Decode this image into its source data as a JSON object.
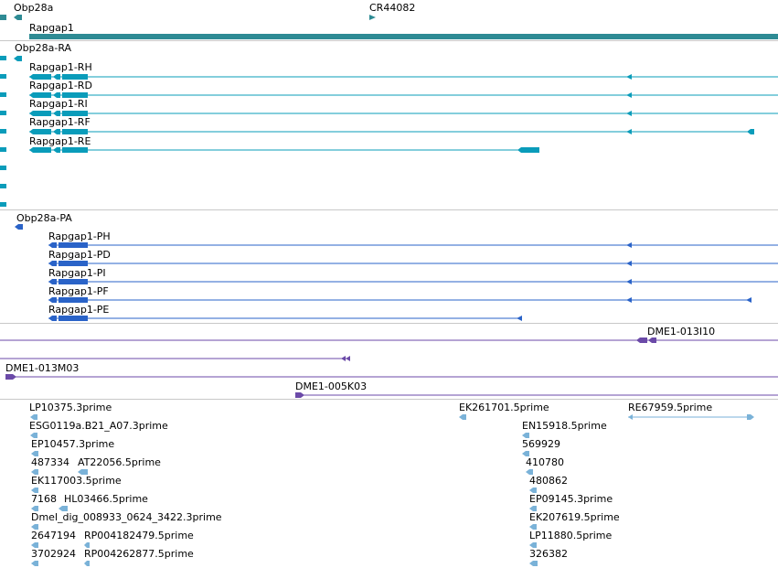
{
  "colors": {
    "gene": "#2e8b94",
    "cdna_teal": "#0a9cba",
    "cdna_blue": "#2a63c8",
    "clone": "#6b4aa8",
    "est": "#7ab2d8",
    "separator": "#c8c8c8",
    "label": "#000000"
  },
  "tracks": {
    "genes": {
      "obp28a": "Obp28a",
      "cr44082": "CR44082",
      "rapgap1": "Rapgap1"
    },
    "transcripts_a": {
      "obp28a_ra": "Obp28a-RA",
      "rh": "Rapgap1-RH",
      "rd": "Rapgap1-RD",
      "ri": "Rapgap1-RI",
      "rf": "Rapgap1-RF",
      "re": "Rapgap1-RE"
    },
    "transcripts_b": {
      "obp28a_pa": "Obp28a-PA",
      "ph": "Rapgap1-PH",
      "pd": "Rapgap1-PD",
      "pi": "Rapgap1-PI",
      "pf": "Rapgap1-PF",
      "pe": "Rapgap1-PE"
    },
    "clones": {
      "dme1_013i10": "DME1-013I10",
      "dme1_013m03": "DME1-013M03",
      "dme1_005k03": "DME1-005K03"
    },
    "ests": {
      "lp10375": "LP10375.3prime",
      "esg0119a": "ESG0119a.B21_A07.3prime",
      "ep10457": "EP10457.3prime",
      "n487334": "487334",
      "at22056": "AT22056.5prime",
      "ek117003": "EK117003.5prime",
      "n7168": "7168",
      "hl03466": "HL03466.5prime",
      "dmel_dig": "Dmel_dig_008933_0624_3422.3prime",
      "n2647194": "2647194",
      "rp004182479": "RP004182479.5prime",
      "n3702924": "3702924",
      "rp004262877": "RP004262877.5prime",
      "ek261701": "EK261701.5prime",
      "en15918": "EN15918.5prime",
      "n569929": "569929",
      "n410780": "410780",
      "n480862": "480862",
      "ep09145": "EP09145.3prime",
      "ek207619": "EK207619.5prime",
      "lp11880": "LP11880.5prime",
      "n326382": "326382",
      "re67959": "RE67959.5prime"
    }
  }
}
